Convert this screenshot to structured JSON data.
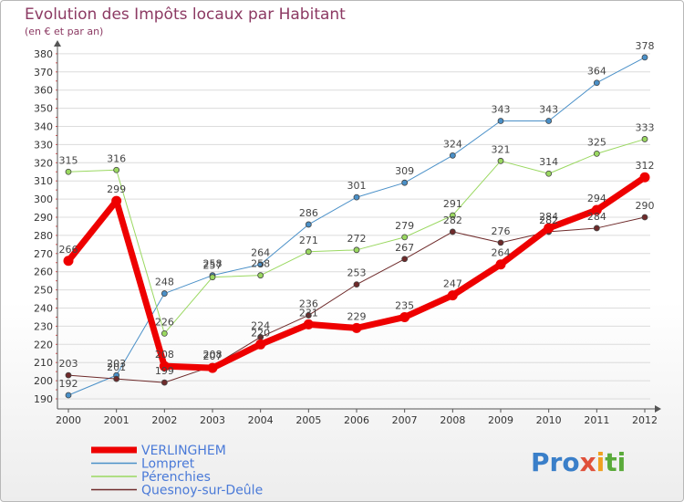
{
  "title": "Evolution des Impôts locaux par Habitant",
  "subtitle": "(en € et par an)",
  "logo": {
    "text": "Proxiti",
    "parts": [
      "Pro",
      "x",
      "i",
      "ti"
    ]
  },
  "chart_data": {
    "type": "line",
    "title": "Evolution des Impôts locaux par Habitant",
    "subtitle": "(en € et par an)",
    "xlabel": "",
    "ylabel": "",
    "x": [
      "2000",
      "2001",
      "2002",
      "2003",
      "2004",
      "2005",
      "2006",
      "2007",
      "2008",
      "2009",
      "2010",
      "2011",
      "2012"
    ],
    "ylim": [
      190,
      380
    ],
    "yticks": [
      190,
      200,
      210,
      220,
      230,
      240,
      250,
      260,
      270,
      280,
      290,
      300,
      310,
      320,
      330,
      340,
      350,
      360,
      370,
      380
    ],
    "grid": "horizontal",
    "legend_position": "bottom-left",
    "series": [
      {
        "name": "Lompret",
        "color": "#4a90c8",
        "width": 1,
        "values": [
          192,
          203,
          248,
          258,
          264,
          286,
          301,
          309,
          324,
          343,
          343,
          364,
          378
        ]
      },
      {
        "name": "Pérenchies",
        "color": "#9ad860",
        "width": 1,
        "values": [
          315,
          316,
          226,
          257,
          258,
          271,
          272,
          279,
          291,
          321,
          314,
          325,
          333
        ]
      },
      {
        "name": "Quesnoy-sur-Deûle",
        "color": "#6e2a2a",
        "width": 1,
        "values": [
          203,
          201,
          199,
          208,
          224,
          236,
          253,
          267,
          282,
          276,
          282,
          284,
          290
        ]
      },
      {
        "name": "VERLINGHEM",
        "color": "#ee0000",
        "width": 7,
        "values": [
          266,
          299,
          208,
          207,
          220,
          231,
          229,
          235,
          247,
          264,
          284,
          294,
          312
        ]
      }
    ],
    "legend_order": [
      "VERLINGHEM",
      "Lompret",
      "Pérenchies",
      "Quesnoy-sur-Deûle"
    ]
  }
}
